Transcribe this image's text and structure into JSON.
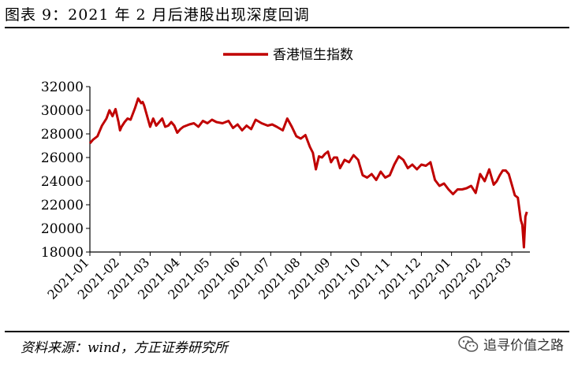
{
  "figure_title": "图表 9：2021 年 2 月后港股出现深度回调",
  "source_text": "资料来源：wind，方正证券研究所",
  "watermark_text": "追寻价值之路",
  "colors": {
    "series": "#c00000",
    "axis": "#000000"
  },
  "chart_data": {
    "type": "line",
    "title": "",
    "xlabel": "",
    "ylabel": "",
    "ylim": [
      18000,
      32000
    ],
    "yticks": [
      18000,
      20000,
      22000,
      24000,
      26000,
      28000,
      30000,
      32000
    ],
    "xlim": [
      0,
      14.6
    ],
    "x_tick_labels": [
      "2021-01",
      "2021-02",
      "2021-03",
      "2021-04",
      "2021-05",
      "2021-06",
      "2021-07",
      "2021-08",
      "2021-09",
      "2021-10",
      "2021-11",
      "2021-12",
      "2022-01",
      "2022-02",
      "2022-03"
    ],
    "legend": {
      "position": "top-center",
      "entries": [
        "香港恒生指数"
      ]
    },
    "series": [
      {
        "name": "香港恒生指数",
        "x": [
          0,
          0.1,
          0.25,
          0.4,
          0.55,
          0.65,
          0.75,
          0.85,
          0.95,
          1.0,
          1.05,
          1.15,
          1.25,
          1.35,
          1.5,
          1.6,
          1.7,
          1.75,
          1.8,
          1.9,
          2.0,
          2.1,
          2.2,
          2.3,
          2.4,
          2.5,
          2.6,
          2.7,
          2.8,
          2.9,
          3.0,
          3.1,
          3.2,
          3.3,
          3.45,
          3.6,
          3.75,
          3.9,
          4.05,
          4.2,
          4.4,
          4.6,
          4.75,
          4.9,
          5.05,
          5.2,
          5.35,
          5.5,
          5.7,
          5.9,
          6.05,
          6.2,
          6.4,
          6.55,
          6.7,
          6.85,
          7.0,
          7.15,
          7.3,
          7.4,
          7.5,
          7.6,
          7.7,
          7.8,
          7.9,
          8.0,
          8.1,
          8.2,
          8.3,
          8.45,
          8.6,
          8.75,
          8.9,
          9.05,
          9.2,
          9.35,
          9.5,
          9.65,
          9.8,
          9.95,
          10.1,
          10.25,
          10.4,
          10.55,
          10.7,
          10.85,
          11.0,
          11.15,
          11.3,
          11.45,
          11.6,
          11.75,
          11.9,
          12.05,
          12.2,
          12.35,
          12.5,
          12.65,
          12.8,
          12.95,
          13.1,
          13.25,
          13.4,
          13.5,
          13.6,
          13.7,
          13.8,
          13.9,
          14.0,
          14.1,
          14.2,
          14.3,
          14.35,
          14.4,
          14.45,
          14.5
        ],
        "values": [
          27200,
          27500,
          27800,
          28700,
          29300,
          30000,
          29500,
          30100,
          29000,
          28300,
          28600,
          29000,
          29300,
          29200,
          30200,
          31000,
          30600,
          30700,
          30400,
          29500,
          28600,
          29300,
          28700,
          29000,
          29300,
          28600,
          28700,
          29000,
          28700,
          28100,
          28400,
          28600,
          28700,
          28800,
          28900,
          28600,
          29100,
          28900,
          29200,
          29000,
          28900,
          29100,
          28500,
          28800,
          28300,
          28700,
          28400,
          29200,
          28900,
          28700,
          28800,
          28600,
          28300,
          29300,
          28600,
          27800,
          27600,
          27900,
          26900,
          26400,
          25000,
          26100,
          26000,
          26300,
          26500,
          25600,
          26000,
          26000,
          25100,
          25800,
          25600,
          26200,
          25800,
          24500,
          24300,
          24600,
          24100,
          24800,
          24300,
          24500,
          25400,
          26100,
          25800,
          25100,
          25400,
          25000,
          25400,
          25300,
          25600,
          24100,
          23600,
          23800,
          23300,
          22900,
          23300,
          23300,
          23400,
          23600,
          23000,
          24600,
          24000,
          25000,
          23700,
          24000,
          24500,
          24900,
          24900,
          24600,
          23700,
          22800,
          22600,
          20700,
          20300,
          18400,
          21000,
          21400
        ]
      }
    ]
  }
}
